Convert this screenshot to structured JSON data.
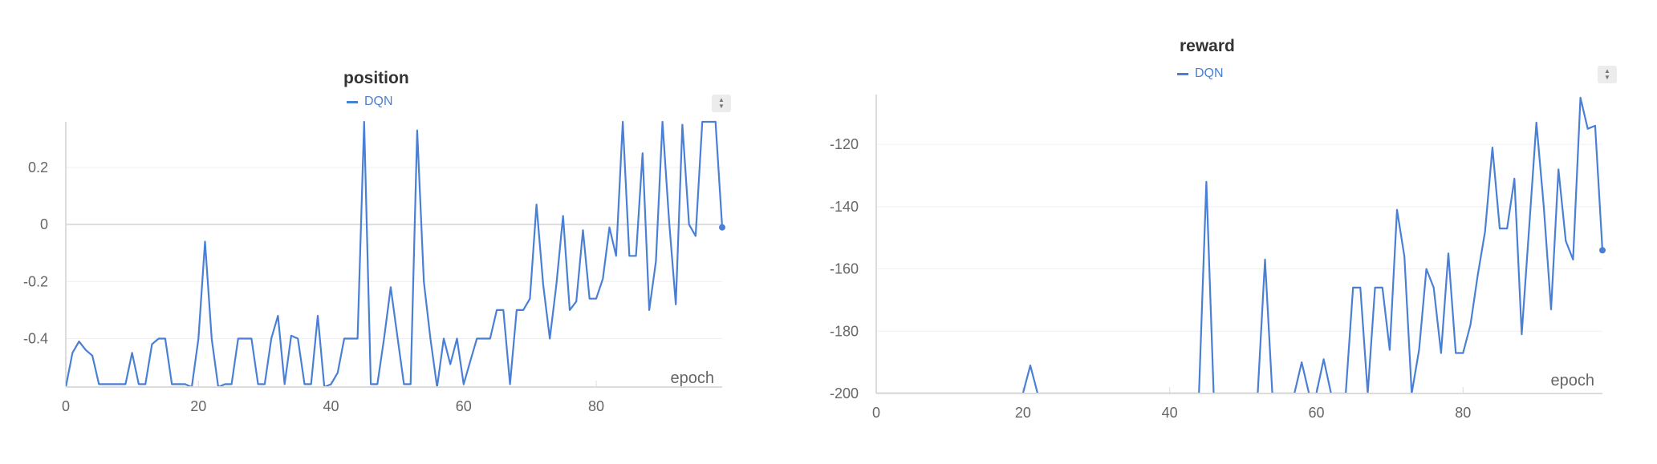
{
  "chart_data": [
    {
      "type": "line",
      "title": "position",
      "xlabel": "epoch",
      "ylabel": "",
      "xlim": [
        0,
        99
      ],
      "ylim": [
        -0.57,
        0.36
      ],
      "xticks": [
        0,
        20,
        40,
        60,
        80
      ],
      "yticks": [
        -0.4,
        -0.2,
        0,
        0.2
      ],
      "ytick_labels": [
        "-0.4",
        "-0.2",
        "0",
        "0.2"
      ],
      "legend": "top-center",
      "grid": true,
      "color": "#4a7fd6",
      "series": [
        {
          "name": "DQN",
          "x": [
            0,
            1,
            2,
            3,
            4,
            5,
            6,
            7,
            8,
            9,
            10,
            11,
            12,
            13,
            14,
            15,
            16,
            17,
            18,
            19,
            20,
            21,
            22,
            23,
            24,
            25,
            26,
            27,
            28,
            29,
            30,
            31,
            32,
            33,
            34,
            35,
            36,
            37,
            38,
            39,
            40,
            41,
            42,
            43,
            44,
            45,
            46,
            47,
            48,
            49,
            50,
            51,
            52,
            53,
            54,
            55,
            56,
            57,
            58,
            59,
            60,
            61,
            62,
            63,
            64,
            65,
            66,
            67,
            68,
            69,
            70,
            71,
            72,
            73,
            74,
            75,
            76,
            77,
            78,
            79,
            80,
            81,
            82,
            83,
            84,
            85,
            86,
            87,
            88,
            89,
            90,
            91,
            92,
            93,
            94,
            95,
            96,
            97,
            98,
            99
          ],
          "y": [
            -0.57,
            -0.45,
            -0.41,
            -0.44,
            -0.46,
            -0.56,
            -0.56,
            -0.56,
            -0.56,
            -0.56,
            -0.45,
            -0.56,
            -0.56,
            -0.42,
            -0.4,
            -0.4,
            -0.56,
            -0.56,
            -0.56,
            -0.57,
            -0.4,
            -0.06,
            -0.4,
            -0.57,
            -0.56,
            -0.56,
            -0.4,
            -0.4,
            -0.4,
            -0.56,
            -0.56,
            -0.4,
            -0.32,
            -0.56,
            -0.39,
            -0.4,
            -0.56,
            -0.56,
            -0.32,
            -0.57,
            -0.56,
            -0.52,
            -0.4,
            -0.4,
            -0.4,
            0.36,
            -0.56,
            -0.56,
            -0.4,
            -0.22,
            -0.39,
            -0.56,
            -0.56,
            0.33,
            -0.2,
            -0.4,
            -0.57,
            -0.4,
            -0.49,
            -0.4,
            -0.56,
            -0.48,
            -0.4,
            -0.4,
            -0.4,
            -0.3,
            -0.3,
            -0.56,
            -0.3,
            -0.3,
            -0.26,
            0.07,
            -0.21,
            -0.4,
            -0.21,
            0.03,
            -0.3,
            -0.27,
            -0.02,
            -0.26,
            -0.26,
            -0.19,
            -0.01,
            -0.11,
            0.36,
            -0.11,
            -0.11,
            0.25,
            -0.3,
            -0.13,
            0.36,
            0.01,
            -0.28,
            0.35,
            0.0,
            -0.04,
            0.36,
            0.36,
            0.36,
            -0.01
          ]
        }
      ]
    },
    {
      "type": "line",
      "title": "reward",
      "xlabel": "epoch",
      "ylabel": "",
      "xlim": [
        0,
        99
      ],
      "ylim": [
        -200,
        -104
      ],
      "xticks": [
        0,
        20,
        40,
        60,
        80
      ],
      "yticks": [
        -200,
        -180,
        -160,
        -140,
        -120
      ],
      "ytick_labels": [
        "-200",
        "-180",
        "-160",
        "-140",
        "-120"
      ],
      "legend": "top-left",
      "grid": true,
      "color": "#4a7fd6",
      "series": [
        {
          "name": "DQN",
          "x": [
            0,
            1,
            2,
            3,
            4,
            5,
            6,
            7,
            8,
            9,
            10,
            11,
            12,
            13,
            14,
            15,
            16,
            17,
            18,
            19,
            20,
            21,
            22,
            23,
            24,
            25,
            26,
            27,
            28,
            29,
            30,
            31,
            32,
            33,
            34,
            35,
            36,
            37,
            38,
            39,
            40,
            41,
            42,
            43,
            44,
            45,
            46,
            47,
            48,
            49,
            50,
            51,
            52,
            53,
            54,
            55,
            56,
            57,
            58,
            59,
            60,
            61,
            62,
            63,
            64,
            65,
            66,
            67,
            68,
            69,
            70,
            71,
            72,
            73,
            74,
            75,
            76,
            77,
            78,
            79,
            80,
            81,
            82,
            83,
            84,
            85,
            86,
            87,
            88,
            89,
            90,
            91,
            92,
            93,
            94,
            95,
            96,
            97,
            98,
            99
          ],
          "y": [
            -200,
            -200,
            -200,
            -200,
            -200,
            -200,
            -200,
            -200,
            -200,
            -200,
            -200,
            -200,
            -200,
            -200,
            -200,
            -200,
            -200,
            -200,
            -200,
            -200,
            -200,
            -191,
            -200,
            -200,
            -200,
            -200,
            -200,
            -200,
            -200,
            -200,
            -200,
            -200,
            -200,
            -200,
            -200,
            -200,
            -200,
            -200,
            -200,
            -200,
            -200,
            -200,
            -200,
            -200,
            -200,
            -132,
            -200,
            -200,
            -200,
            -200,
            -200,
            -200,
            -200,
            -157,
            -200,
            -200,
            -200,
            -200,
            -190,
            -200,
            -200,
            -189,
            -200,
            -200,
            -200,
            -166,
            -166,
            -200,
            -166,
            -166,
            -186,
            -141,
            -156,
            -200,
            -186,
            -160,
            -166,
            -187,
            -155,
            -187,
            -187,
            -178,
            -162,
            -148,
            -121,
            -147,
            -147,
            -131,
            -181,
            -147,
            -113,
            -140,
            -173,
            -128,
            -151,
            -157,
            -105,
            -115,
            -114,
            -154
          ]
        }
      ]
    }
  ]
}
